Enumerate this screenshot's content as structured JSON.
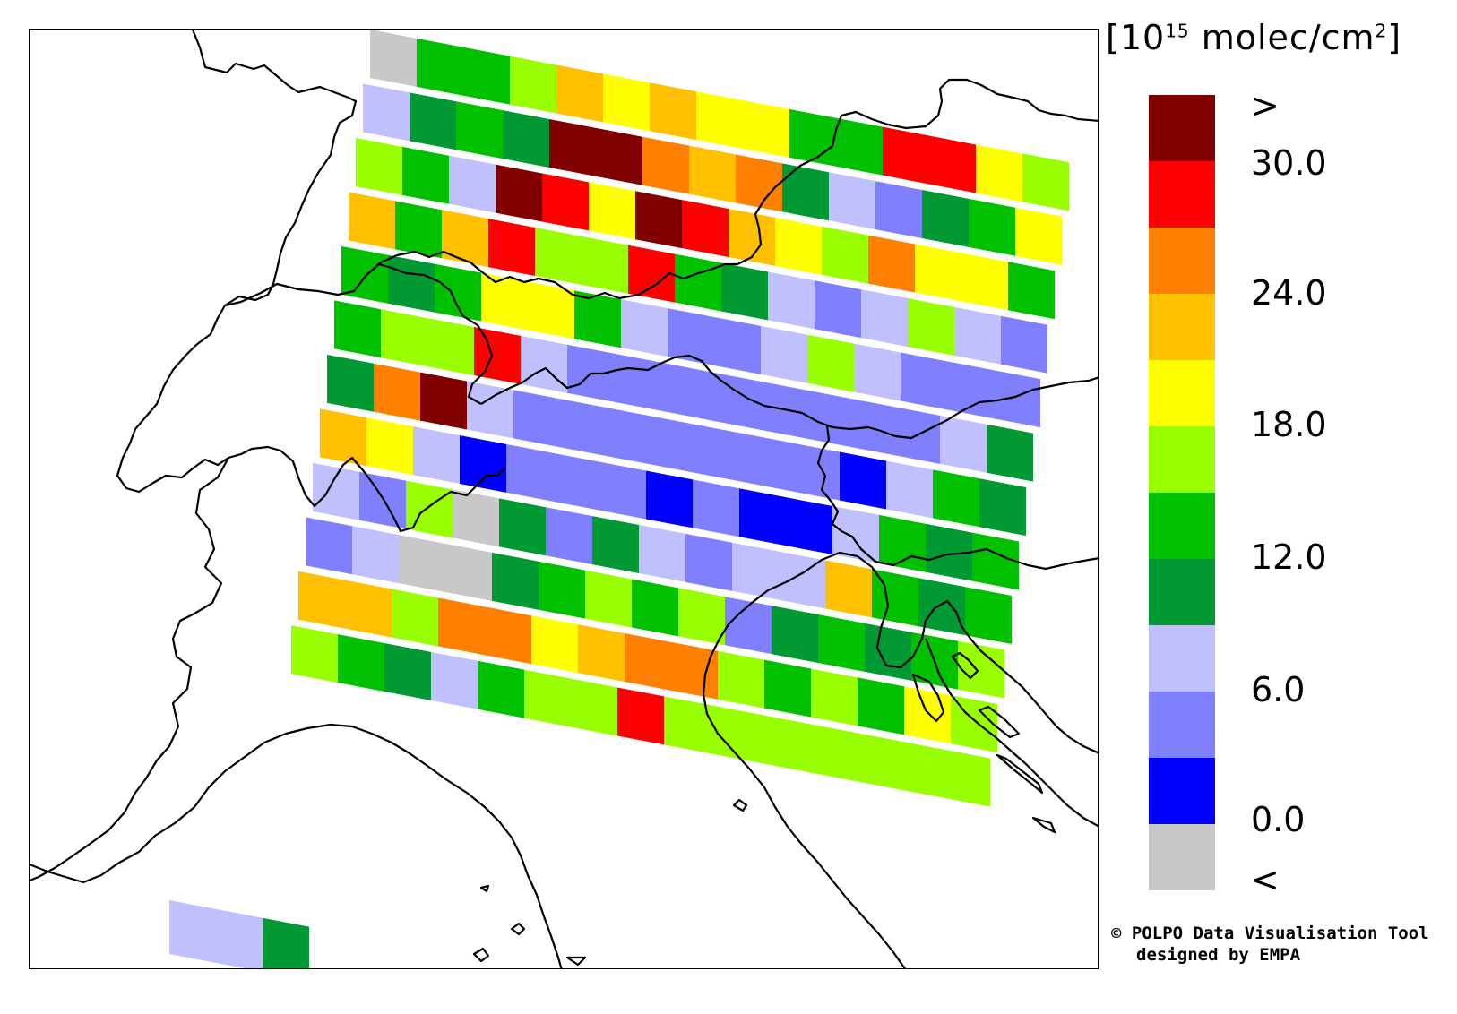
{
  "legend": {
    "unit_prefix": "[10",
    "unit_exponent": "15",
    "unit_suffix": " molec/cm",
    "unit_sq": "2",
    "unit_close": "]",
    "colors": [
      "#800000",
      "#ff0000",
      "#ff8000",
      "#ffc000",
      "#ffff00",
      "#99ff00",
      "#00c000",
      "#009933",
      "#c0c0ff",
      "#8080ff",
      "#0000ff",
      "#c8c8c8"
    ],
    "labels": [
      ">",
      "30.0",
      "24.0",
      "18.0",
      "12.0",
      "6.0",
      "0.0",
      "<"
    ]
  },
  "credit": {
    "line1": "© POLPO Data Visualisation Tool",
    "line2": "designed by EMPA"
  },
  "swaths": [
    [
      "#c8c8c8",
      "#00c000",
      "#00c000",
      "#99ff00",
      "#ffc000",
      "#ffff00",
      "#ffc000",
      "#ffff00",
      "#ffff00",
      "#00c000",
      "#00c000",
      "#ff0000",
      "#ff0000",
      "#ffff00",
      "#99ff00"
    ],
    [
      "#c0c0ff",
      "#009933",
      "#00c000",
      "#009933",
      "#800000",
      "#800000",
      "#ff8000",
      "#ffc000",
      "#ff8000",
      "#009933",
      "#c0c0ff",
      "#8080ff",
      "#009933",
      "#00c000",
      "#ffff00"
    ],
    [
      "#99ff00",
      "#00c000",
      "#c0c0ff",
      "#800000",
      "#ff0000",
      "#ffff00",
      "#800000",
      "#ff0000",
      "#ffc000",
      "#ffff00",
      "#99ff00",
      "#ff8000",
      "#ffff00",
      "#ffff00",
      "#00c000"
    ],
    [
      "#ffc000",
      "#00c000",
      "#ffc000",
      "#ff0000",
      "#99ff00",
      "#99ff00",
      "#ff0000",
      "#00c000",
      "#009933",
      "#c0c0ff",
      "#8080ff",
      "#c0c0ff",
      "#99ff00",
      "#c0c0ff",
      "#8080ff"
    ],
    [
      "#00c000",
      "#009933",
      "#00c000",
      "#ffff00",
      "#ffff00",
      "#00c000",
      "#c0c0ff",
      "#8080ff",
      "#8080ff",
      "#c0c0ff",
      "#99ff00",
      "#c0c0ff",
      "#8080ff",
      "#8080ff",
      "#8080ff"
    ],
    [
      "#00c000",
      "#99ff00",
      "#99ff00",
      "#ff0000",
      "#c0c0ff",
      "#8080ff",
      "#8080ff",
      "#8080ff",
      "#8080ff",
      "#8080ff",
      "#8080ff",
      "#8080ff",
      "#8080ff",
      "#c0c0ff",
      "#009933"
    ],
    [
      "#009933",
      "#ff8000",
      "#800000",
      "#c0c0ff",
      "#8080ff",
      "#8080ff",
      "#8080ff",
      "#8080ff",
      "#8080ff",
      "#8080ff",
      "#8080ff",
      "#0000ff",
      "#c0c0ff",
      "#00c000",
      "#009933"
    ],
    [
      "#ffc000",
      "#ffff00",
      "#c0c0ff",
      "#0000ff",
      "#8080ff",
      "#8080ff",
      "#8080ff",
      "#0000ff",
      "#8080ff",
      "#0000ff",
      "#0000ff",
      "#c0c0ff",
      "#00c000",
      "#009933",
      "#00c000"
    ],
    [
      "#c0c0ff",
      "#8080ff",
      "#99ff00",
      "#c8c8c8",
      "#009933",
      "#8080ff",
      "#009933",
      "#c0c0ff",
      "#8080ff",
      "#c0c0ff",
      "#c0c0ff",
      "#ffc000",
      "#00c000",
      "#009933",
      "#00c000"
    ],
    [
      "#8080ff",
      "#c0c0ff",
      "#c8c8c8",
      "#c8c8c8",
      "#009933",
      "#00c000",
      "#99ff00",
      "#00c000",
      "#99ff00",
      "#8080ff",
      "#009933",
      "#00c000",
      "#009933",
      "#00c000",
      "#99ff00"
    ],
    [
      "#ffc000",
      "#ffc000",
      "#99ff00",
      "#ff8000",
      "#ff8000",
      "#ffff00",
      "#ffc000",
      "#ff8000",
      "#ff8000",
      "#99ff00",
      "#00c000",
      "#99ff00",
      "#00c000",
      "#ffff00",
      "#99ff00"
    ],
    [
      "#99ff00",
      "#00c000",
      "#009933",
      "#c0c0ff",
      "#00c000",
      "#99ff00",
      "#99ff00",
      "#ff0000",
      "#99ff00",
      "#99ff00",
      "#99ff00",
      "#99ff00",
      "#99ff00",
      "#99ff00",
      "#99ff00"
    ]
  ],
  "bottom_swath": [
    "#c0c0ff",
    "#c0c0ff",
    "#009933"
  ]
}
